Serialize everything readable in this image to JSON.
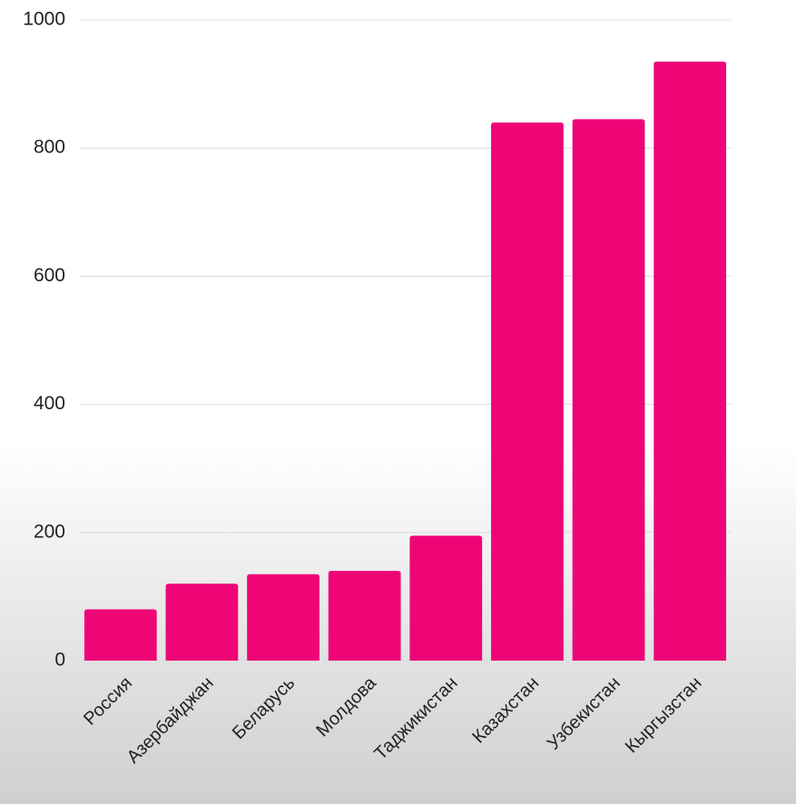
{
  "chart_data": {
    "type": "bar",
    "categories": [
      "Россия",
      "Азербайджан",
      "Беларусь",
      "Молдова",
      "Таджикистан",
      "Казахстан",
      "Узбекистан",
      "Кыргызстан"
    ],
    "values": [
      80,
      120,
      135,
      140,
      195,
      840,
      845,
      935
    ],
    "color": "#ee0677",
    "ylim": [
      0,
      1000
    ],
    "yticks": [
      0,
      200,
      400,
      600,
      800,
      1000
    ],
    "grid": true
  }
}
